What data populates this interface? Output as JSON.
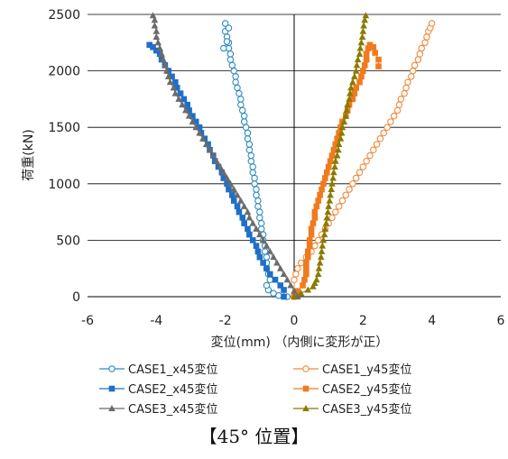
{
  "caption": "【45° 位置】",
  "chart_data": {
    "type": "scatter",
    "xlabel": "変位(mm) （内側に変形が正）",
    "ylabel": "荷重(kN)",
    "xlim": [
      -6,
      6
    ],
    "ylim": [
      0,
      2500
    ],
    "xticks": [
      -6,
      -4,
      -2,
      0,
      2,
      4,
      6
    ],
    "yticks": [
      0,
      500,
      1000,
      1500,
      2000,
      2500
    ],
    "grid": "horizontal",
    "legend_position": "bottom",
    "series": [
      {
        "name": "CASE1_x45変位",
        "color": "#2e8bc0",
        "marker": "circle-open",
        "points": [
          [
            -0.2,
            0
          ],
          [
            -0.45,
            10
          ],
          [
            -0.6,
            30
          ],
          [
            -0.75,
            60
          ],
          [
            -0.8,
            100
          ],
          [
            -0.7,
            150
          ],
          [
            -0.75,
            200
          ],
          [
            -0.8,
            250
          ],
          [
            -0.8,
            300
          ],
          [
            -0.8,
            350
          ],
          [
            -0.85,
            400
          ],
          [
            -0.85,
            450
          ],
          [
            -0.9,
            500
          ],
          [
            -0.9,
            550
          ],
          [
            -0.95,
            600
          ],
          [
            -0.95,
            650
          ],
          [
            -1.0,
            700
          ],
          [
            -1.0,
            750
          ],
          [
            -1.05,
            800
          ],
          [
            -1.05,
            850
          ],
          [
            -1.1,
            900
          ],
          [
            -1.1,
            950
          ],
          [
            -1.15,
            1000
          ],
          [
            -1.15,
            1050
          ],
          [
            -1.2,
            1100
          ],
          [
            -1.2,
            1150
          ],
          [
            -1.25,
            1200
          ],
          [
            -1.25,
            1250
          ],
          [
            -1.3,
            1300
          ],
          [
            -1.3,
            1350
          ],
          [
            -1.35,
            1400
          ],
          [
            -1.35,
            1450
          ],
          [
            -1.4,
            1500
          ],
          [
            -1.45,
            1550
          ],
          [
            -1.45,
            1600
          ],
          [
            -1.5,
            1650
          ],
          [
            -1.55,
            1700
          ],
          [
            -1.55,
            1750
          ],
          [
            -1.6,
            1800
          ],
          [
            -1.65,
            1850
          ],
          [
            -1.7,
            1900
          ],
          [
            -1.7,
            1950
          ],
          [
            -1.75,
            2000
          ],
          [
            -1.8,
            2050
          ],
          [
            -1.85,
            2100
          ],
          [
            -1.85,
            2150
          ],
          [
            -1.9,
            2200
          ],
          [
            -1.9,
            2250
          ],
          [
            -1.95,
            2300
          ],
          [
            -2.0,
            2350
          ],
          [
            -1.9,
            2380
          ],
          [
            -2.0,
            2420
          ],
          [
            -1.95,
            2260
          ],
          [
            -2.05,
            2200
          ]
        ]
      },
      {
        "name": "CASE1_y45変位",
        "color": "#f08a3c",
        "marker": "circle-open",
        "points": [
          [
            0.0,
            0
          ],
          [
            0.0,
            150
          ],
          [
            0.05,
            200
          ],
          [
            0.1,
            250
          ],
          [
            0.2,
            300
          ],
          [
            0.35,
            350
          ],
          [
            0.5,
            400
          ],
          [
            0.6,
            450
          ],
          [
            0.7,
            500
          ],
          [
            0.8,
            550
          ],
          [
            0.9,
            600
          ],
          [
            1.0,
            650
          ],
          [
            1.1,
            700
          ],
          [
            1.2,
            750
          ],
          [
            1.3,
            800
          ],
          [
            1.4,
            850
          ],
          [
            1.5,
            900
          ],
          [
            1.6,
            950
          ],
          [
            1.7,
            1000
          ],
          [
            1.8,
            1050
          ],
          [
            1.9,
            1100
          ],
          [
            2.0,
            1150
          ],
          [
            2.1,
            1200
          ],
          [
            2.2,
            1250
          ],
          [
            2.3,
            1300
          ],
          [
            2.4,
            1350
          ],
          [
            2.5,
            1400
          ],
          [
            2.6,
            1450
          ],
          [
            2.7,
            1500
          ],
          [
            2.8,
            1550
          ],
          [
            2.9,
            1600
          ],
          [
            3.0,
            1650
          ],
          [
            3.05,
            1700
          ],
          [
            3.1,
            1750
          ],
          [
            3.2,
            1800
          ],
          [
            3.25,
            1850
          ],
          [
            3.3,
            1900
          ],
          [
            3.4,
            1950
          ],
          [
            3.45,
            2000
          ],
          [
            3.5,
            2050
          ],
          [
            3.6,
            2100
          ],
          [
            3.65,
            2150
          ],
          [
            3.7,
            2200
          ],
          [
            3.8,
            2250
          ],
          [
            3.85,
            2300
          ],
          [
            3.9,
            2350
          ],
          [
            3.95,
            2380
          ],
          [
            4.0,
            2420
          ]
        ]
      },
      {
        "name": "CASE2_x45変位",
        "color": "#1f6fc8",
        "marker": "square",
        "points": [
          [
            -0.3,
            0
          ],
          [
            -0.3,
            60
          ],
          [
            -0.4,
            100
          ],
          [
            -0.55,
            150
          ],
          [
            -0.7,
            200
          ],
          [
            -0.8,
            250
          ],
          [
            -0.9,
            300
          ],
          [
            -1.0,
            350
          ],
          [
            -1.05,
            400
          ],
          [
            -1.1,
            450
          ],
          [
            -1.2,
            500
          ],
          [
            -1.3,
            550
          ],
          [
            -1.35,
            600
          ],
          [
            -1.45,
            650
          ],
          [
            -1.5,
            700
          ],
          [
            -1.6,
            750
          ],
          [
            -1.65,
            800
          ],
          [
            -1.75,
            850
          ],
          [
            -1.8,
            900
          ],
          [
            -1.9,
            950
          ],
          [
            -1.95,
            1000
          ],
          [
            -2.05,
            1050
          ],
          [
            -2.1,
            1100
          ],
          [
            -2.2,
            1150
          ],
          [
            -2.3,
            1200
          ],
          [
            -2.35,
            1250
          ],
          [
            -2.45,
            1300
          ],
          [
            -2.5,
            1350
          ],
          [
            -2.6,
            1400
          ],
          [
            -2.7,
            1450
          ],
          [
            -2.75,
            1500
          ],
          [
            -2.85,
            1550
          ],
          [
            -2.95,
            1600
          ],
          [
            -3.05,
            1650
          ],
          [
            -3.1,
            1700
          ],
          [
            -3.2,
            1750
          ],
          [
            -3.3,
            1800
          ],
          [
            -3.4,
            1850
          ],
          [
            -3.45,
            1900
          ],
          [
            -3.55,
            1950
          ],
          [
            -3.65,
            2000
          ],
          [
            -3.75,
            2050
          ],
          [
            -3.85,
            2100
          ],
          [
            -3.9,
            2150
          ],
          [
            -4.0,
            2180
          ],
          [
            -4.1,
            2210
          ],
          [
            -4.2,
            2230
          ]
        ]
      },
      {
        "name": "CASE2_y45変位",
        "color": "#f07a1e",
        "marker": "square",
        "points": [
          [
            0.0,
            0
          ],
          [
            0.1,
            50
          ],
          [
            0.25,
            100
          ],
          [
            0.3,
            150
          ],
          [
            0.35,
            200
          ],
          [
            0.35,
            250
          ],
          [
            0.35,
            300
          ],
          [
            0.4,
            350
          ],
          [
            0.4,
            400
          ],
          [
            0.45,
            450
          ],
          [
            0.45,
            500
          ],
          [
            0.5,
            550
          ],
          [
            0.5,
            600
          ],
          [
            0.55,
            650
          ],
          [
            0.6,
            700
          ],
          [
            0.6,
            750
          ],
          [
            0.65,
            800
          ],
          [
            0.7,
            850
          ],
          [
            0.75,
            900
          ],
          [
            0.8,
            950
          ],
          [
            0.85,
            1000
          ],
          [
            0.9,
            1050
          ],
          [
            0.95,
            1100
          ],
          [
            1.0,
            1150
          ],
          [
            1.05,
            1200
          ],
          [
            1.1,
            1250
          ],
          [
            1.15,
            1300
          ],
          [
            1.2,
            1350
          ],
          [
            1.25,
            1400
          ],
          [
            1.3,
            1450
          ],
          [
            1.35,
            1500
          ],
          [
            1.4,
            1550
          ],
          [
            1.5,
            1600
          ],
          [
            1.55,
            1650
          ],
          [
            1.6,
            1700
          ],
          [
            1.7,
            1750
          ],
          [
            1.75,
            1800
          ],
          [
            1.8,
            1850
          ],
          [
            1.9,
            1900
          ],
          [
            1.95,
            1950
          ],
          [
            2.0,
            2000
          ],
          [
            2.05,
            2050
          ],
          [
            2.1,
            2100
          ],
          [
            2.1,
            2150
          ],
          [
            2.15,
            2200
          ],
          [
            2.2,
            2230
          ],
          [
            2.3,
            2210
          ],
          [
            2.35,
            2160
          ],
          [
            2.45,
            2100
          ],
          [
            2.45,
            2040
          ]
        ]
      },
      {
        "name": "CASE3_x45変位",
        "color": "#6b6b6b",
        "marker": "triangle",
        "points": [
          [
            0.1,
            0
          ],
          [
            0.0,
            50
          ],
          [
            -0.1,
            100
          ],
          [
            -0.2,
            150
          ],
          [
            -0.3,
            200
          ],
          [
            -0.4,
            250
          ],
          [
            -0.5,
            300
          ],
          [
            -0.6,
            350
          ],
          [
            -0.7,
            400
          ],
          [
            -0.8,
            450
          ],
          [
            -0.9,
            500
          ],
          [
            -1.0,
            550
          ],
          [
            -1.1,
            600
          ],
          [
            -1.2,
            650
          ],
          [
            -1.3,
            700
          ],
          [
            -1.35,
            750
          ],
          [
            -1.45,
            800
          ],
          [
            -1.55,
            850
          ],
          [
            -1.65,
            900
          ],
          [
            -1.75,
            950
          ],
          [
            -1.85,
            1000
          ],
          [
            -1.95,
            1050
          ],
          [
            -2.05,
            1100
          ],
          [
            -2.15,
            1150
          ],
          [
            -2.25,
            1200
          ],
          [
            -2.35,
            1250
          ],
          [
            -2.45,
            1300
          ],
          [
            -2.55,
            1350
          ],
          [
            -2.65,
            1400
          ],
          [
            -2.75,
            1450
          ],
          [
            -2.85,
            1500
          ],
          [
            -2.95,
            1550
          ],
          [
            -3.05,
            1600
          ],
          [
            -3.15,
            1650
          ],
          [
            -3.25,
            1700
          ],
          [
            -3.35,
            1750
          ],
          [
            -3.45,
            1800
          ],
          [
            -3.5,
            1850
          ],
          [
            -3.6,
            1900
          ],
          [
            -3.65,
            1950
          ],
          [
            -3.7,
            2000
          ],
          [
            -3.75,
            2050
          ],
          [
            -3.8,
            2100
          ],
          [
            -3.85,
            2150
          ],
          [
            -3.9,
            2200
          ],
          [
            -3.95,
            2250
          ],
          [
            -4.0,
            2300
          ],
          [
            -4.0,
            2350
          ],
          [
            -4.05,
            2400
          ],
          [
            -4.05,
            2450
          ],
          [
            -4.1,
            2490
          ]
        ]
      },
      {
        "name": "CASE3_y45変位",
        "color": "#8b7a00",
        "marker": "triangle",
        "points": [
          [
            0.0,
            0
          ],
          [
            0.2,
            30
          ],
          [
            0.4,
            60
          ],
          [
            0.55,
            90
          ],
          [
            0.6,
            120
          ],
          [
            0.65,
            150
          ],
          [
            0.7,
            200
          ],
          [
            0.72,
            250
          ],
          [
            0.75,
            300
          ],
          [
            0.78,
            350
          ],
          [
            0.8,
            400
          ],
          [
            0.82,
            450
          ],
          [
            0.85,
            500
          ],
          [
            0.88,
            550
          ],
          [
            0.9,
            600
          ],
          [
            0.93,
            650
          ],
          [
            0.95,
            700
          ],
          [
            0.98,
            750
          ],
          [
            1.0,
            800
          ],
          [
            1.03,
            850
          ],
          [
            1.05,
            900
          ],
          [
            1.08,
            950
          ],
          [
            1.1,
            1000
          ],
          [
            1.13,
            1050
          ],
          [
            1.15,
            1100
          ],
          [
            1.18,
            1150
          ],
          [
            1.2,
            1200
          ],
          [
            1.25,
            1250
          ],
          [
            1.28,
            1300
          ],
          [
            1.3,
            1350
          ],
          [
            1.35,
            1400
          ],
          [
            1.38,
            1450
          ],
          [
            1.4,
            1500
          ],
          [
            1.45,
            1550
          ],
          [
            1.5,
            1600
          ],
          [
            1.52,
            1650
          ],
          [
            1.55,
            1700
          ],
          [
            1.6,
            1750
          ],
          [
            1.62,
            1800
          ],
          [
            1.65,
            1850
          ],
          [
            1.7,
            1900
          ],
          [
            1.75,
            1950
          ],
          [
            1.8,
            2000
          ],
          [
            1.82,
            2050
          ],
          [
            1.85,
            2100
          ],
          [
            1.9,
            2150
          ],
          [
            1.92,
            2200
          ],
          [
            1.95,
            2250
          ],
          [
            1.98,
            2300
          ],
          [
            2.0,
            2350
          ],
          [
            2.02,
            2400
          ],
          [
            2.05,
            2450
          ],
          [
            2.08,
            2490
          ]
        ]
      }
    ]
  }
}
